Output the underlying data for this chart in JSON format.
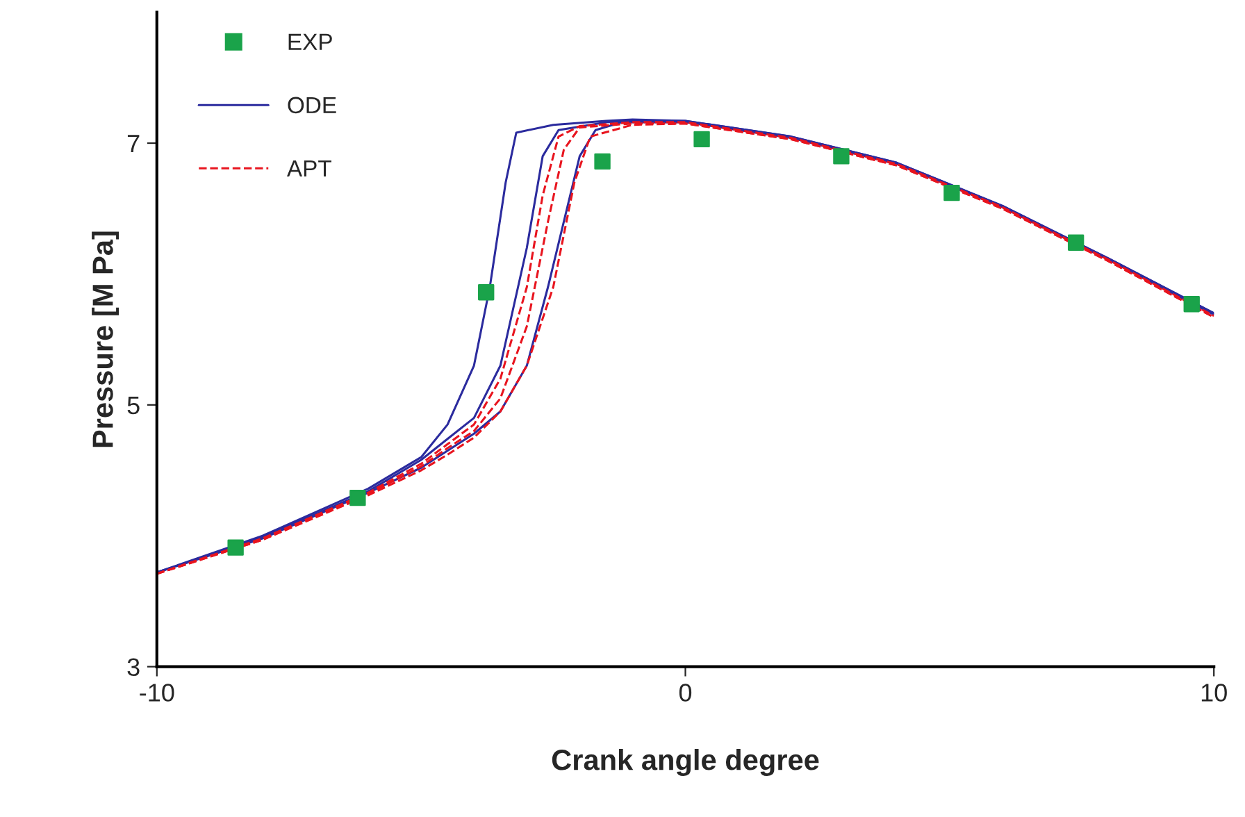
{
  "chart_data": {
    "type": "line",
    "xlabel": "Crank angle degree",
    "ylabel": "Pressure [M Pa]",
    "xlim": [
      -10,
      10
    ],
    "xticks": [
      -10,
      0,
      10
    ],
    "ylim": [
      3,
      8
    ],
    "yticks": [
      3,
      5,
      7
    ],
    "grid": false,
    "legend": "top left",
    "series": [
      {
        "type": "scatter",
        "name": "EXP",
        "color": "#1aa34a",
        "marker": "square",
        "x": [
          -8.51,
          -6.2,
          -3.77,
          -1.57,
          0.31,
          2.95,
          5.04,
          7.39,
          9.58
        ],
        "values": [
          3.91,
          4.29,
          5.86,
          6.86,
          7.03,
          6.9,
          6.62,
          6.24,
          5.77
        ]
      },
      {
        "name": "ODE",
        "color": "#2b2b9e",
        "line_style": "solid",
        "x": [
          -10,
          -8,
          -6,
          -5,
          -4.5,
          -4,
          -3.7,
          -3.4,
          -3.2,
          -2.5,
          -1.5,
          -1,
          0,
          2,
          4,
          6,
          8,
          10
        ],
        "values": [
          3.72,
          4.0,
          4.36,
          4.6,
          4.85,
          5.3,
          5.9,
          6.7,
          7.08,
          7.14,
          7.17,
          7.18,
          7.17,
          7.05,
          6.85,
          6.52,
          6.12,
          5.7
        ]
      },
      {
        "color": "#2b2b9e",
        "line_style": "solid",
        "x": [
          -10,
          -8,
          -6,
          -5,
          -4.5,
          -4,
          -3.5,
          -3,
          -2.7,
          -2.4,
          -1.5,
          -1,
          0,
          2,
          4,
          6,
          8,
          10
        ],
        "values": [
          3.72,
          3.99,
          4.34,
          4.58,
          4.74,
          4.9,
          5.3,
          6.2,
          6.9,
          7.1,
          7.16,
          7.17,
          7.17,
          7.05,
          6.85,
          6.52,
          6.12,
          5.7
        ]
      },
      {
        "color": "#2b2b9e",
        "line_style": "solid",
        "x": [
          -10,
          -8,
          -6,
          -5,
          -4.5,
          -4,
          -3.5,
          -3,
          -2.6,
          -2.3,
          -2,
          -1.7,
          -1.2,
          0,
          2,
          4,
          6,
          8,
          10
        ],
        "values": [
          3.72,
          3.98,
          4.33,
          4.52,
          4.65,
          4.78,
          4.95,
          5.3,
          5.9,
          6.4,
          6.9,
          7.1,
          7.16,
          7.16,
          7.04,
          6.84,
          6.51,
          6.11,
          5.69
        ]
      },
      {
        "name": "APT",
        "color": "#e8141e",
        "line_style": "dashed",
        "x": [
          -10,
          -8,
          -6,
          -5,
          -4.5,
          -4,
          -3.5,
          -3,
          -2.7,
          -2.4,
          -2,
          -1,
          0,
          2,
          4,
          6,
          8,
          10
        ],
        "values": [
          3.71,
          3.98,
          4.33,
          4.55,
          4.7,
          4.85,
          5.2,
          5.9,
          6.6,
          7.05,
          7.13,
          7.16,
          7.16,
          7.04,
          6.84,
          6.51,
          6.11,
          5.68
        ]
      },
      {
        "color": "#e8141e",
        "line_style": "dashed",
        "x": [
          -10,
          -8,
          -6,
          -5,
          -4.5,
          -4,
          -3.5,
          -3,
          -2.6,
          -2.3,
          -2,
          -1,
          0,
          2,
          4,
          6,
          8,
          10
        ],
        "values": [
          3.71,
          3.97,
          4.32,
          4.53,
          4.67,
          4.8,
          5.05,
          5.6,
          6.4,
          6.95,
          7.12,
          7.15,
          7.15,
          7.03,
          6.83,
          6.5,
          6.1,
          5.67
        ]
      },
      {
        "color": "#e8141e",
        "line_style": "dashed",
        "x": [
          -10,
          -8,
          -6,
          -5,
          -4.5,
          -4,
          -3.5,
          -3,
          -2.5,
          -2.1,
          -1.8,
          -1,
          0,
          2,
          4,
          6,
          8,
          10
        ],
        "values": [
          3.71,
          3.97,
          4.31,
          4.5,
          4.62,
          4.75,
          4.95,
          5.3,
          5.9,
          6.7,
          7.05,
          7.14,
          7.15,
          7.03,
          6.83,
          6.5,
          6.1,
          5.67
        ]
      }
    ]
  }
}
